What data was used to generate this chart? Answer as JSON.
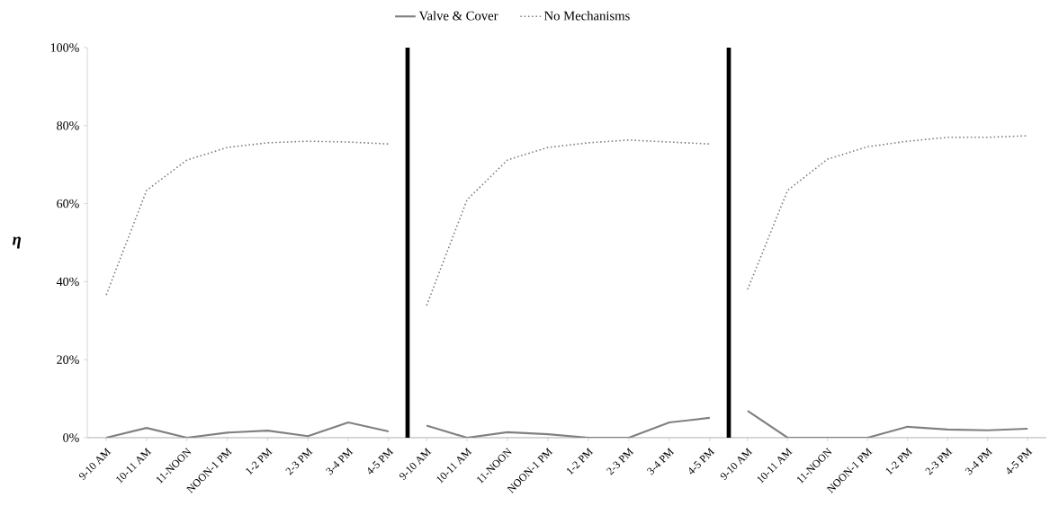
{
  "chart_data": [
    {
      "type": "line",
      "ylabel": "η",
      "legend": "top",
      "marker": "none",
      "categories": [
        "9-10 AM",
        "10-11 AM",
        "11-NOON",
        "NOON-1 PM",
        "1-2 PM",
        "2-3 PM",
        "3-4 PM",
        "4-5 PM"
      ],
      "ylim": [
        0,
        100
      ],
      "yticks": [
        {
          "value": 0,
          "label": "0%"
        },
        {
          "value": 20,
          "label": "20%"
        },
        {
          "value": 40,
          "label": "40%"
        },
        {
          "value": 60,
          "label": "60%"
        },
        {
          "value": 80,
          "label": "80%"
        },
        {
          "value": 100,
          "label": "100%"
        }
      ],
      "series": [
        {
          "name": "Valve & Cover",
          "color": "#808080",
          "line_style": "solid",
          "values": [
            0,
            2.5,
            0,
            1.3,
            1.8,
            0.4,
            3.9,
            1.6
          ]
        },
        {
          "name": "No Mechanisms",
          "color": "#808080",
          "line_style": "dotted",
          "values": [
            36.6,
            63.4,
            71.2,
            74.4,
            75.6,
            76,
            75.8,
            75.3
          ]
        }
      ]
    },
    {
      "type": "line",
      "tick_labels": "x",
      "marker": "none",
      "categories": [
        "9-10 AM",
        "10-11 AM",
        "11-NOON",
        "NOON-1 PM",
        "1-2 PM",
        "2-3 PM",
        "3-4 PM",
        "4-5 PM"
      ],
      "ylim": [
        0,
        100
      ],
      "series": [
        {
          "color": "#808080",
          "line_style": "solid",
          "values": [
            3.1,
            0,
            1.4,
            0.9,
            0,
            0,
            3.9,
            5.1
          ]
        },
        {
          "color": "#808080",
          "line_style": "dotted",
          "values": [
            33.9,
            61,
            71.2,
            74.4,
            75.6,
            76.3,
            75.8,
            75.3
          ]
        }
      ]
    },
    {
      "type": "line",
      "tick_labels": "x",
      "marker": "none",
      "categories": [
        "9-10 AM",
        "10-11 AM",
        "11-NOON",
        "NOON-1 PM",
        "1-2 PM",
        "2-3 PM",
        "3-4 PM",
        "4-5 PM"
      ],
      "ylim": [
        0,
        100
      ],
      "series": [
        {
          "color": "#808080",
          "line_style": "solid",
          "values": [
            6.9,
            0,
            0,
            0,
            2.8,
            2.1,
            1.9,
            2.3
          ]
        },
        {
          "color": "#808080",
          "line_style": "dotted",
          "values": [
            38,
            63.4,
            71.4,
            74.6,
            76,
            77,
            77,
            77.4
          ]
        }
      ]
    }
  ]
}
